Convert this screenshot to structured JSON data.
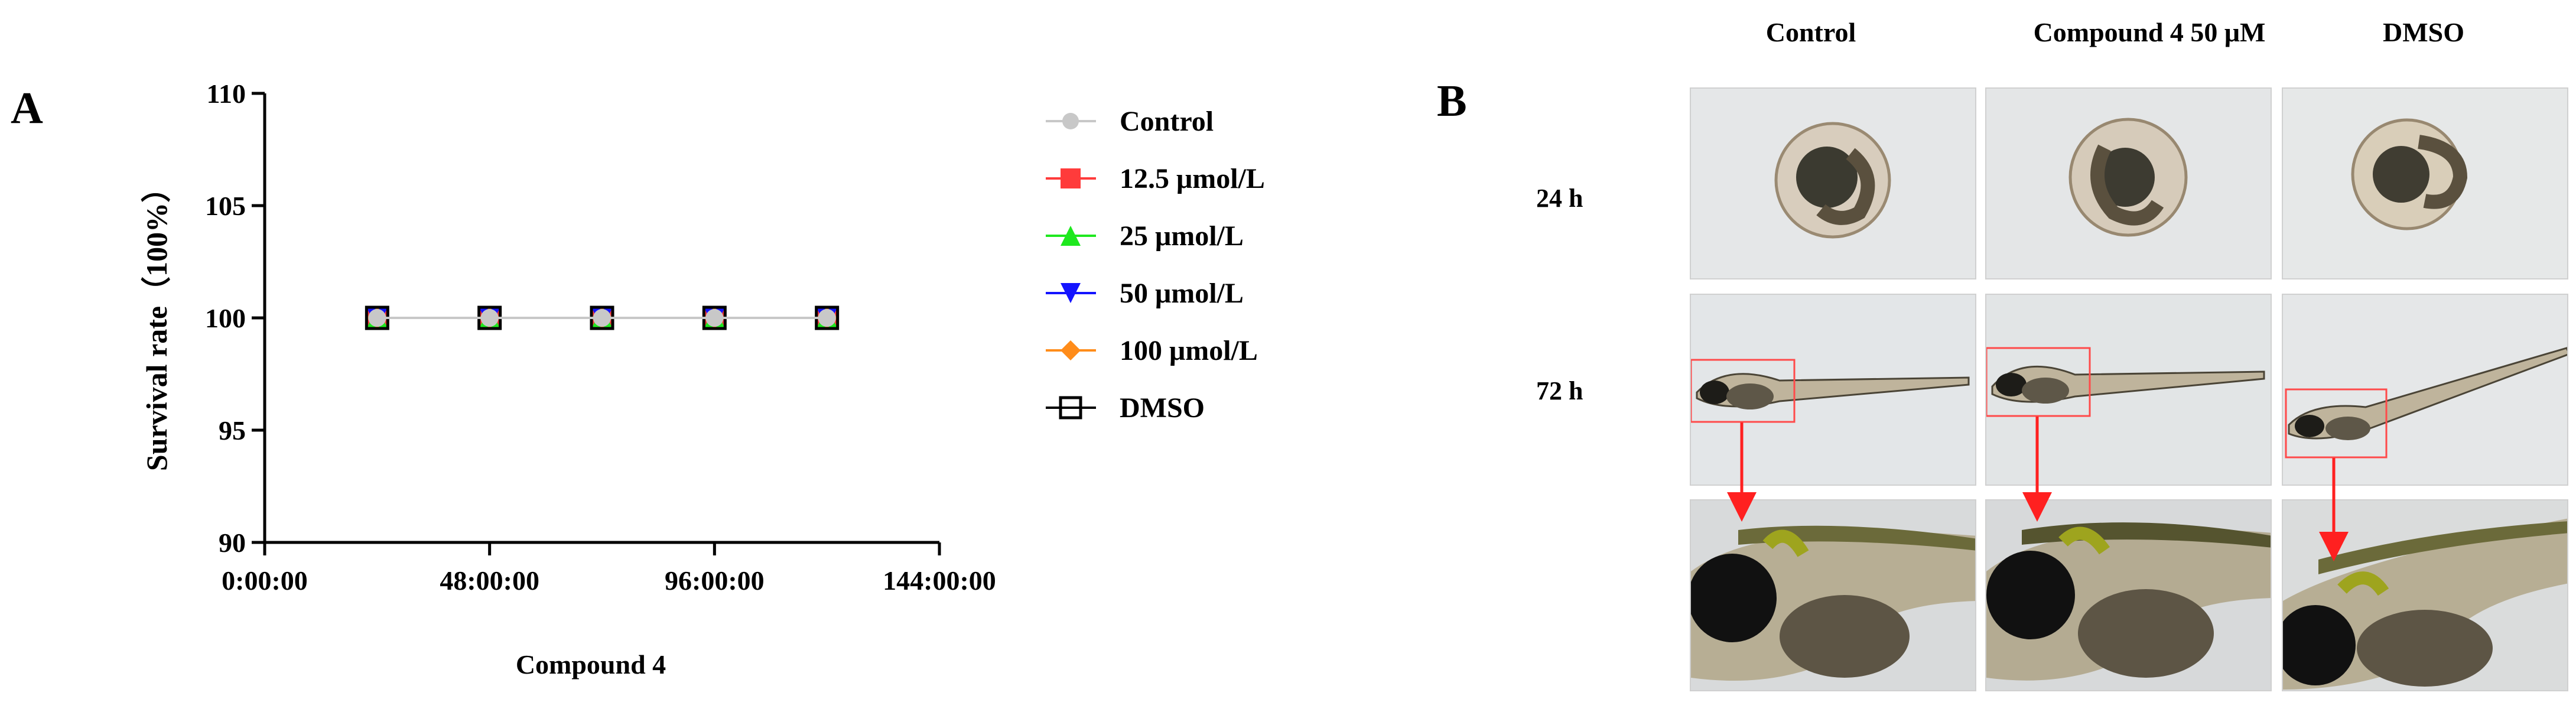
{
  "panel_a": {
    "letter": "A",
    "chart_data": {
      "type": "line",
      "title": "",
      "xlabel": "Compound 4",
      "ylabel": "Survival rate（100%）",
      "x_tick_labels": [
        "0:00:00",
        "48:00:00",
        "96:00:00",
        "144:00:00"
      ],
      "x_ticks_hours": [
        0,
        48,
        96,
        144
      ],
      "xlim": [
        0,
        144
      ],
      "y_ticks": [
        90,
        95,
        100,
        105,
        110
      ],
      "ylim": [
        90,
        110
      ],
      "grid": false,
      "legend_position": "right",
      "x": [
        24,
        48,
        72,
        96,
        120
      ],
      "series": [
        {
          "name": "Control",
          "values": [
            100,
            100,
            100,
            100,
            100
          ],
          "color": "#c8c8c8",
          "marker": "circle"
        },
        {
          "name": "12.5 μmol/L",
          "values": [
            100,
            100,
            100,
            100,
            100
          ],
          "color": "#ff3b3b",
          "marker": "square"
        },
        {
          "name": "25 μmol/L",
          "values": [
            100,
            100,
            100,
            100,
            100
          ],
          "color": "#1ee81e",
          "marker": "triangle-up"
        },
        {
          "name": "50 μmol/L",
          "values": [
            100,
            100,
            100,
            100,
            100
          ],
          "color": "#1414ff",
          "marker": "triangle-down"
        },
        {
          "name": "100 μmol/L",
          "values": [
            100,
            100,
            100,
            100,
            100
          ],
          "color": "#ff8c1a",
          "marker": "diamond"
        },
        {
          "name": "DMSO",
          "values": [
            100,
            100,
            100,
            100,
            100
          ],
          "color": "#000000",
          "marker": "open-square"
        }
      ]
    }
  },
  "panel_b": {
    "letter": "B",
    "columns": [
      "Control",
      "Compound 4 50 μM",
      "DMSO"
    ],
    "rows": [
      "24 h",
      "72 h"
    ]
  }
}
